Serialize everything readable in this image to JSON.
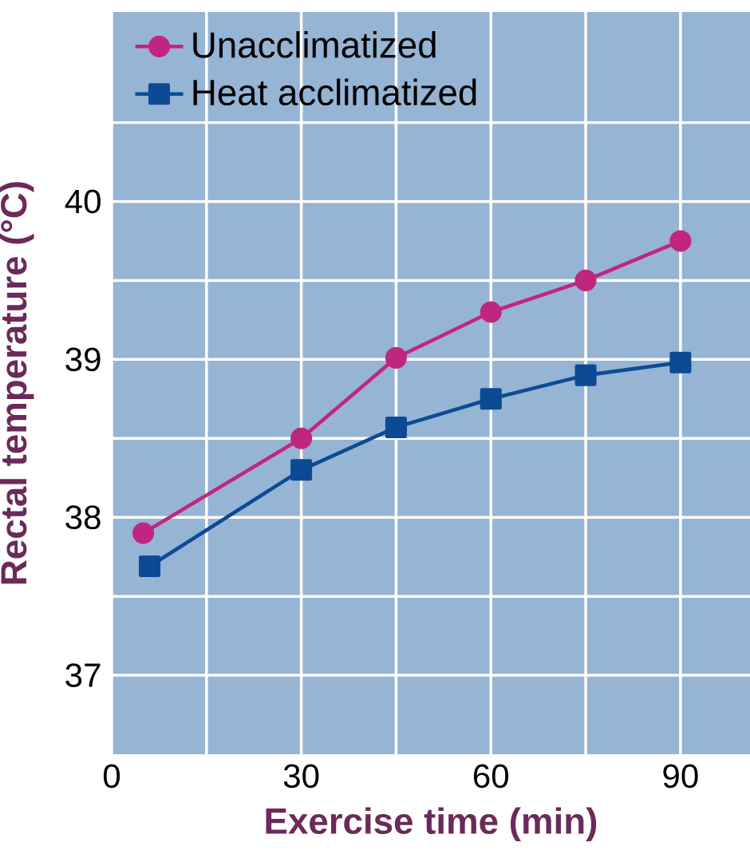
{
  "chart_data": {
    "type": "line",
    "xlabel": "Exercise time (min)",
    "ylabel": "Rectal temperature (°C)",
    "x": [
      5,
      30,
      45,
      60,
      75,
      90
    ],
    "series": [
      {
        "name": "Unacclimatized",
        "color": "#c0267f",
        "marker": "circle",
        "values": [
          37.9,
          38.5,
          39.01,
          39.3,
          39.5,
          39.75
        ]
      },
      {
        "name": "Heat acclimatized",
        "color": "#0d4a94",
        "marker": "square",
        "x": [
          6,
          30,
          45,
          60,
          75,
          90
        ],
        "values": [
          37.69,
          38.3,
          38.57,
          38.75,
          38.9,
          38.98
        ]
      }
    ],
    "xlim": [
      0,
      101
    ],
    "ylim": [
      36.5,
      41.2
    ],
    "xticks": [
      0,
      {
        "value": 15,
        "label": null
      },
      30,
      {
        "value": 45,
        "label": null
      },
      60,
      {
        "value": 75,
        "label": null
      },
      90
    ],
    "yticks": [
      {
        "value": 37,
        "label": "37"
      },
      {
        "value": 37.5,
        "label": null
      },
      {
        "value": 38,
        "label": "38"
      },
      {
        "value": 38.5,
        "label": null
      },
      {
        "value": 39,
        "label": "39"
      },
      {
        "value": 39.5,
        "label": null
      },
      {
        "value": 40,
        "label": "40"
      },
      {
        "value": 40.5,
        "label": null
      }
    ],
    "grid": true,
    "legend": "top left",
    "line_style": "solid"
  }
}
